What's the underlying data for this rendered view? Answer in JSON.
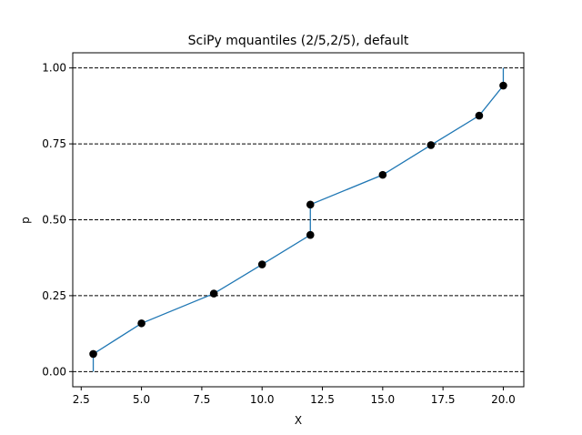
{
  "chart_data": {
    "type": "line",
    "title": "SciPy mquantiles (2/5,2/5), default",
    "xlabel": "X",
    "ylabel": "p",
    "xlim": [
      2.15,
      20.85
    ],
    "ylim": [
      -0.05,
      1.05
    ],
    "xticks": [
      2.5,
      5.0,
      7.5,
      10.0,
      12.5,
      15.0,
      17.5,
      20.0
    ],
    "xtick_labels": [
      "2.5",
      "5.0",
      "7.5",
      "10.0",
      "12.5",
      "15.0",
      "17.5",
      "20.0"
    ],
    "yticks": [
      0.0,
      0.25,
      0.5,
      0.75,
      1.0
    ],
    "ytick_labels": [
      "0.00",
      "0.25",
      "0.50",
      "0.75",
      "1.00"
    ],
    "hlines": [
      0.0,
      0.25,
      0.5,
      0.75,
      1.0
    ],
    "hline_style": "dashed",
    "line": {
      "x": [
        3,
        3,
        5,
        8,
        10,
        12,
        12,
        15,
        17,
        19,
        20,
        20
      ],
      "y": [
        0.0,
        0.058,
        0.159,
        0.257,
        0.353,
        0.45,
        0.55,
        0.648,
        0.746,
        0.843,
        0.942,
        1.0
      ],
      "color": "#1f77b4"
    },
    "points": {
      "x": [
        3,
        5,
        8,
        10,
        12,
        12,
        15,
        17,
        19,
        20
      ],
      "y": [
        0.058,
        0.159,
        0.257,
        0.353,
        0.45,
        0.55,
        0.648,
        0.746,
        0.843,
        0.942
      ],
      "color": "#000000"
    },
    "grid": false
  }
}
